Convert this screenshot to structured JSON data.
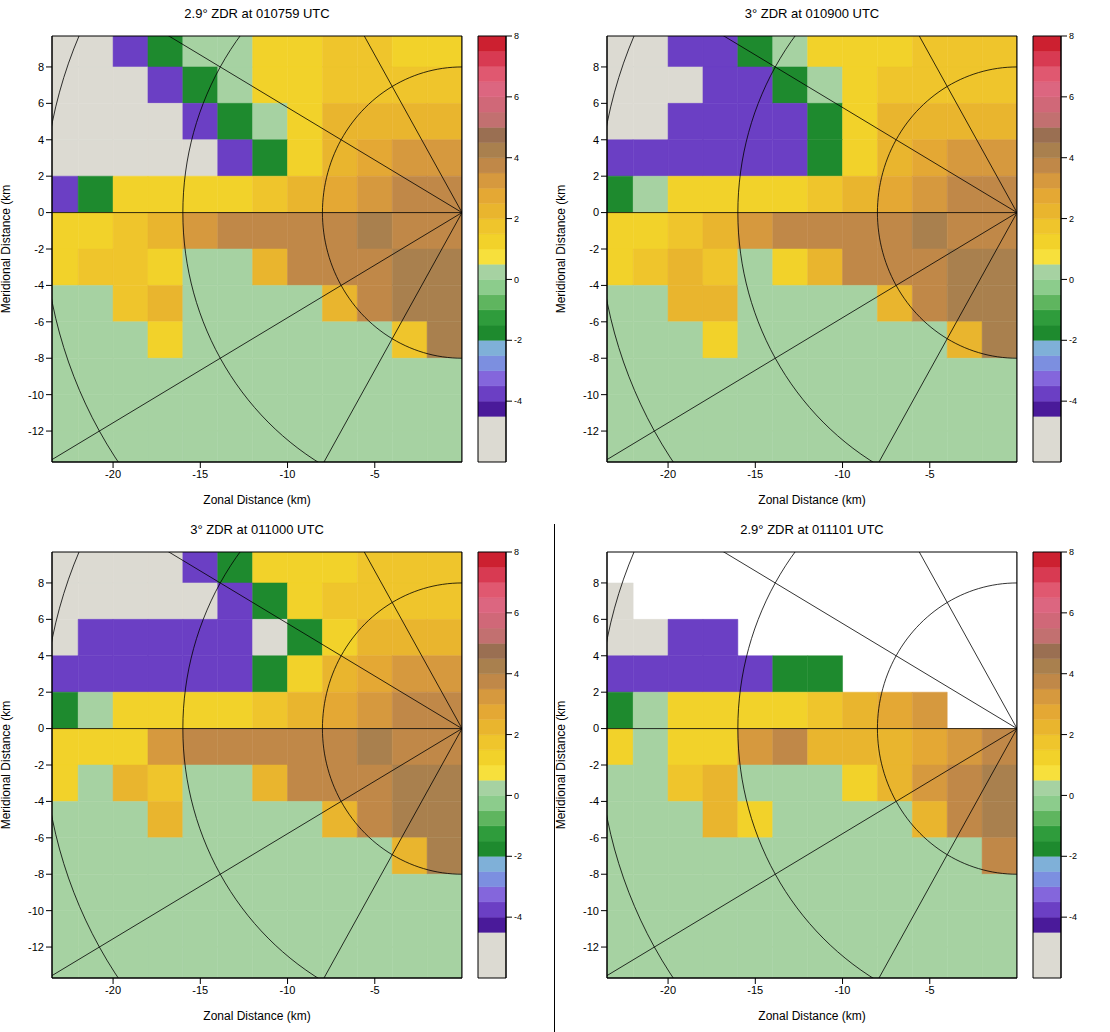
{
  "chart_data": [
    {
      "type": "heatmap",
      "title": "2.9° ZDR at 010759 UTC",
      "x_label": "Zonal Distance (km)",
      "y_label": "Meridional Distance (km",
      "xlim": [
        -23.5,
        0
      ],
      "ylim": [
        -13.7,
        9.7
      ],
      "xticks": [
        -20,
        -15,
        -10,
        -5
      ],
      "yticks": [
        -12,
        -10,
        -8,
        -6,
        -4,
        -2,
        0,
        2,
        4,
        6,
        8
      ],
      "x_edges": [
        -24,
        -22,
        -20,
        -18,
        -16,
        -14,
        -12,
        -10,
        -8,
        -6,
        -4,
        -2,
        0
      ],
      "y_edges": [
        10,
        8,
        6,
        4,
        2,
        0,
        -2,
        -4,
        -6,
        -8,
        -10,
        -12,
        -14
      ],
      "cells": [
        [
          -5,
          -5,
          -4,
          -1.8,
          0.2,
          0.2,
          1.2,
          1.2,
          1.5,
          1.5,
          1.2,
          1.2
        ],
        [
          -5,
          -5,
          -5,
          -4,
          -1.8,
          0.2,
          1.2,
          1.2,
          1.5,
          1.5,
          1.5,
          1.5
        ],
        [
          -5,
          -5,
          -5,
          -5,
          -4,
          -1.8,
          0.2,
          1.2,
          2.2,
          2.2,
          2.2,
          2.2
        ],
        [
          -5,
          -5,
          -5,
          -5,
          -5,
          -4,
          -1.8,
          1.2,
          2.2,
          2.5,
          3.0,
          3.0
        ],
        [
          -4,
          -1.8,
          1.2,
          1.2,
          1.2,
          1.2,
          1.5,
          2.2,
          2.5,
          3.0,
          3.5,
          3.8
        ],
        [
          1.2,
          1.2,
          1.5,
          2.2,
          3.0,
          3.5,
          3.8,
          3.8,
          3.8,
          4.0,
          3.8,
          3.8
        ],
        [
          1.2,
          1.5,
          1.5,
          1.2,
          0.2,
          0.2,
          2.2,
          3.8,
          3.8,
          3.8,
          4.3,
          4.0
        ],
        [
          0.2,
          0.2,
          1.5,
          2.2,
          0.2,
          0.2,
          0.2,
          0.2,
          2.2,
          3.8,
          4.0,
          4.3
        ],
        [
          0.2,
          0.2,
          0.2,
          1.2,
          0.2,
          0.2,
          0.2,
          0.2,
          0.2,
          0.2,
          1.5,
          4.3
        ],
        [
          0.2,
          0.2,
          0.2,
          0.2,
          0.2,
          0.2,
          0.2,
          0.2,
          0.2,
          0.2,
          0.2,
          0.2
        ],
        [
          0.2,
          0.2,
          0.2,
          0.2,
          0.2,
          0.2,
          0.2,
          0.2,
          0.2,
          0.2,
          0.2,
          0.2
        ],
        [
          0.2,
          0.2,
          0.2,
          0.2,
          0.2,
          0.2,
          0.2,
          0.2,
          0.2,
          0.2,
          0.2,
          0.2
        ]
      ],
      "range_rings": [
        8,
        16,
        24
      ],
      "azimuths": [
        90,
        120,
        150,
        180,
        210,
        240,
        270
      ],
      "colorbar": {
        "range": [
          -6,
          8
        ],
        "ticks": [
          -4,
          -2,
          0,
          2,
          4,
          6,
          8
        ],
        "bounds": [
          -6,
          -4.5,
          -4,
          -3.5,
          -3,
          -2.5,
          -2,
          -1.5,
          -1,
          -0.5,
          0,
          0.5,
          1,
          1.5,
          2,
          2.5,
          3,
          3.5,
          4,
          4.5,
          5,
          5.5,
          6,
          6.5,
          7,
          7.5,
          8
        ],
        "colors": [
          "#dcdad2",
          "#4a1a9a",
          "#6b3fc4",
          "#8466dc",
          "#7c8fe0",
          "#7fb0d8",
          "#1e8a2e",
          "#2f9c3c",
          "#5fb55f",
          "#8ccc8c",
          "#a6d2a2",
          "#f7e03c",
          "#f2d22a",
          "#efc52c",
          "#e9b52e",
          "#e4a834",
          "#d6993e",
          "#c08848",
          "#a9804e",
          "#9a6f52",
          "#c27070",
          "#d06878",
          "#dc6680",
          "#e05870",
          "#d83a52",
          "#cc2030"
        ]
      }
    },
    {
      "type": "heatmap",
      "title": "3° ZDR at 010900 UTC",
      "x_label": "Zonal Distance (km)",
      "y_label": "Meridional Distance (km",
      "xlim": [
        -23.5,
        0
      ],
      "ylim": [
        -13.7,
        9.7
      ],
      "xticks": [
        -20,
        -15,
        -10,
        -5
      ],
      "yticks": [
        -12,
        -10,
        -8,
        -6,
        -4,
        -2,
        0,
        2,
        4,
        6,
        8
      ],
      "x_edges": [
        -24,
        -22,
        -20,
        -18,
        -16,
        -14,
        -12,
        -10,
        -8,
        -6,
        -4,
        -2,
        0
      ],
      "y_edges": [
        10,
        8,
        6,
        4,
        2,
        0,
        -2,
        -4,
        -6,
        -8,
        -10,
        -12,
        -14
      ],
      "cells": [
        [
          -5,
          -5,
          -4,
          -4,
          -1.8,
          0.2,
          1.2,
          1.2,
          1.2,
          1.5,
          1.5,
          1.5
        ],
        [
          -5,
          -5,
          -5,
          -4,
          -4,
          -1.8,
          0.2,
          1.2,
          1.5,
          1.5,
          1.5,
          1.5
        ],
        [
          -5,
          -5,
          -4,
          -4,
          -4,
          -4,
          -1.8,
          1.2,
          2.2,
          2.2,
          2.2,
          2.2
        ],
        [
          -4,
          -4,
          -4,
          -4,
          -4,
          -4,
          -1.8,
          1.2,
          2.2,
          2.5,
          3.0,
          3.0
        ],
        [
          -1.8,
          0.2,
          1.2,
          1.2,
          1.2,
          1.2,
          1.5,
          2.2,
          2.5,
          3.0,
          3.5,
          3.8
        ],
        [
          1.2,
          1.2,
          1.5,
          2.2,
          3.0,
          3.5,
          3.8,
          3.8,
          3.8,
          4.0,
          3.8,
          3.8
        ],
        [
          1.2,
          1.5,
          2.2,
          1.5,
          0.2,
          1.2,
          2.2,
          3.8,
          3.8,
          3.8,
          4.3,
          4.0
        ],
        [
          0.2,
          0.2,
          2.2,
          2.2,
          0.2,
          0.2,
          0.2,
          0.2,
          2.2,
          3.8,
          4.0,
          4.3
        ],
        [
          0.2,
          0.2,
          0.2,
          1.2,
          0.2,
          0.2,
          0.2,
          0.2,
          0.2,
          0.2,
          2.2,
          4.3
        ],
        [
          0.2,
          0.2,
          0.2,
          0.2,
          0.2,
          0.2,
          0.2,
          0.2,
          0.2,
          0.2,
          0.2,
          0.2
        ],
        [
          0.2,
          0.2,
          0.2,
          0.2,
          0.2,
          0.2,
          0.2,
          0.2,
          0.2,
          0.2,
          0.2,
          0.2
        ],
        [
          0.2,
          0.2,
          0.2,
          0.2,
          0.2,
          0.2,
          0.2,
          0.2,
          0.2,
          0.2,
          0.2,
          0.2
        ]
      ],
      "range_rings": [
        8,
        16,
        24
      ],
      "azimuths": [
        90,
        120,
        150,
        180,
        210,
        240,
        270
      ],
      "colorbar": {
        "range": [
          -6,
          8
        ],
        "ticks": [
          -4,
          -2,
          0,
          2,
          4,
          6,
          8
        ],
        "bounds": [
          -6,
          -4.5,
          -4,
          -3.5,
          -3,
          -2.5,
          -2,
          -1.5,
          -1,
          -0.5,
          0,
          0.5,
          1,
          1.5,
          2,
          2.5,
          3,
          3.5,
          4,
          4.5,
          5,
          5.5,
          6,
          6.5,
          7,
          7.5,
          8
        ],
        "colors": [
          "#dcdad2",
          "#4a1a9a",
          "#6b3fc4",
          "#8466dc",
          "#7c8fe0",
          "#7fb0d8",
          "#1e8a2e",
          "#2f9c3c",
          "#5fb55f",
          "#8ccc8c",
          "#a6d2a2",
          "#f7e03c",
          "#f2d22a",
          "#efc52c",
          "#e9b52e",
          "#e4a834",
          "#d6993e",
          "#c08848",
          "#a9804e",
          "#9a6f52",
          "#c27070",
          "#d06878",
          "#dc6680",
          "#e05870",
          "#d83a52",
          "#cc2030"
        ]
      }
    },
    {
      "type": "heatmap",
      "title": "3° ZDR at 011000 UTC",
      "x_label": "Zonal Distance (km)",
      "y_label": "Meridional Distance (km",
      "xlim": [
        -23.5,
        0
      ],
      "ylim": [
        -13.7,
        9.7
      ],
      "xticks": [
        -20,
        -15,
        -10,
        -5
      ],
      "yticks": [
        -12,
        -10,
        -8,
        -6,
        -4,
        -2,
        0,
        2,
        4,
        6,
        8
      ],
      "x_edges": [
        -24,
        -22,
        -20,
        -18,
        -16,
        -14,
        -12,
        -10,
        -8,
        -6,
        -4,
        -2,
        0
      ],
      "y_edges": [
        10,
        8,
        6,
        4,
        2,
        0,
        -2,
        -4,
        -6,
        -8,
        -10,
        -12,
        -14
      ],
      "cells": [
        [
          -5,
          -5,
          -5,
          -5,
          -4,
          -1.8,
          1.2,
          1.2,
          1.2,
          1.5,
          1.5,
          1.5
        ],
        [
          -5,
          -5,
          -5,
          -5,
          -5,
          -4,
          -1.8,
          1.2,
          1.5,
          1.5,
          1.5,
          1.5
        ],
        [
          -5,
          -4,
          -4,
          -4,
          -4,
          -4,
          -5,
          -1.8,
          1.2,
          2.2,
          2.2,
          2.2
        ],
        [
          -4,
          -4,
          -4,
          -4,
          -4,
          -4,
          -1.8,
          1.2,
          2.2,
          2.5,
          3.0,
          3.0
        ],
        [
          -1.8,
          0.2,
          1.2,
          1.2,
          1.2,
          1.2,
          1.5,
          2.2,
          2.5,
          3.0,
          3.5,
          3.8
        ],
        [
          1.2,
          1.2,
          1.2,
          3.0,
          3.5,
          3.8,
          3.8,
          3.8,
          3.8,
          4.0,
          3.8,
          3.8
        ],
        [
          1.2,
          0.2,
          2.2,
          1.5,
          0.2,
          0.2,
          2.2,
          3.8,
          3.8,
          3.8,
          4.3,
          4.0
        ],
        [
          0.2,
          0.2,
          0.2,
          2.2,
          0.2,
          0.2,
          0.2,
          0.2,
          2.2,
          3.8,
          4.0,
          4.3
        ],
        [
          0.2,
          0.2,
          0.2,
          0.2,
          0.2,
          0.2,
          0.2,
          0.2,
          0.2,
          0.2,
          2.2,
          4.3
        ],
        [
          0.2,
          0.2,
          0.2,
          0.2,
          0.2,
          0.2,
          0.2,
          0.2,
          0.2,
          0.2,
          0.2,
          0.2
        ],
        [
          0.2,
          0.2,
          0.2,
          0.2,
          0.2,
          0.2,
          0.2,
          0.2,
          0.2,
          0.2,
          0.2,
          0.2
        ],
        [
          0.2,
          0.2,
          0.2,
          0.2,
          0.2,
          0.2,
          0.2,
          0.2,
          0.2,
          0.2,
          0.2,
          0.2
        ]
      ],
      "range_rings": [
        8,
        16,
        24
      ],
      "azimuths": [
        90,
        120,
        150,
        180,
        210,
        240,
        270
      ],
      "colorbar": {
        "range": [
          -6,
          8
        ],
        "ticks": [
          -4,
          -2,
          0,
          2,
          4,
          6,
          8
        ],
        "bounds": [
          -6,
          -4.5,
          -4,
          -3.5,
          -3,
          -2.5,
          -2,
          -1.5,
          -1,
          -0.5,
          0,
          0.5,
          1,
          1.5,
          2,
          2.5,
          3,
          3.5,
          4,
          4.5,
          5,
          5.5,
          6,
          6.5,
          7,
          7.5,
          8
        ],
        "colors": [
          "#dcdad2",
          "#4a1a9a",
          "#6b3fc4",
          "#8466dc",
          "#7c8fe0",
          "#7fb0d8",
          "#1e8a2e",
          "#2f9c3c",
          "#5fb55f",
          "#8ccc8c",
          "#a6d2a2",
          "#f7e03c",
          "#f2d22a",
          "#efc52c",
          "#e9b52e",
          "#e4a834",
          "#d6993e",
          "#c08848",
          "#a9804e",
          "#9a6f52",
          "#c27070",
          "#d06878",
          "#dc6680",
          "#e05870",
          "#d83a52",
          "#cc2030"
        ]
      }
    },
    {
      "type": "heatmap",
      "title": "2.9° ZDR at 011101 UTC",
      "x_label": "Zonal Distance (km)",
      "y_label": "Meridional Distance (km",
      "xlim": [
        -23.5,
        0
      ],
      "ylim": [
        -13.7,
        9.7
      ],
      "xticks": [
        -20,
        -15,
        -10,
        -5
      ],
      "yticks": [
        -12,
        -10,
        -8,
        -6,
        -4,
        -2,
        0,
        2,
        4,
        6,
        8
      ],
      "x_edges": [
        -24,
        -22,
        -20,
        -18,
        -16,
        -14,
        -12,
        -10,
        -8,
        -6,
        -4,
        -2,
        0
      ],
      "y_edges": [
        10,
        8,
        6,
        4,
        2,
        0,
        -2,
        -4,
        -6,
        -8,
        -10,
        -12,
        -14
      ],
      "cells": [
        [
          null,
          null,
          null,
          null,
          null,
          null,
          null,
          null,
          null,
          null,
          null,
          null
        ],
        [
          -5,
          null,
          null,
          null,
          null,
          null,
          null,
          null,
          null,
          null,
          null,
          null
        ],
        [
          -5,
          -5,
          -4,
          -4,
          null,
          null,
          null,
          null,
          null,
          null,
          null,
          null
        ],
        [
          -4,
          -4,
          -4,
          -4,
          -4,
          -1.8,
          -1.8,
          null,
          null,
          null,
          null,
          null
        ],
        [
          -1.8,
          0.2,
          1.2,
          1.2,
          1.2,
          1.2,
          1.5,
          2.2,
          2.5,
          3.0,
          null,
          null
        ],
        [
          1.2,
          0.2,
          1.2,
          1.2,
          3.0,
          3.5,
          2.2,
          2.2,
          2.2,
          2.5,
          3.0,
          3.8
        ],
        [
          0.2,
          0.2,
          1.5,
          2.2,
          0.2,
          0.2,
          0.2,
          1.2,
          2.2,
          3.0,
          3.8,
          4.0
        ],
        [
          0.2,
          0.2,
          0.2,
          2.2,
          1.2,
          0.2,
          0.2,
          0.2,
          0.2,
          2.2,
          3.8,
          4.3
        ],
        [
          0.2,
          0.2,
          0.2,
          0.2,
          0.2,
          0.2,
          0.2,
          0.2,
          0.2,
          0.2,
          0.2,
          3.8
        ],
        [
          0.2,
          0.2,
          0.2,
          0.2,
          0.2,
          0.2,
          0.2,
          0.2,
          0.2,
          0.2,
          0.2,
          0.2
        ],
        [
          0.2,
          0.2,
          0.2,
          0.2,
          0.2,
          0.2,
          0.2,
          0.2,
          0.2,
          0.2,
          0.2,
          0.2
        ],
        [
          0.2,
          0.2,
          0.2,
          0.2,
          0.2,
          0.2,
          0.2,
          0.2,
          0.2,
          0.2,
          0.2,
          0.2
        ]
      ],
      "range_rings": [
        8,
        16,
        24
      ],
      "azimuths": [
        90,
        120,
        150,
        180,
        210,
        240,
        270
      ],
      "colorbar": {
        "range": [
          -6,
          8
        ],
        "ticks": [
          -4,
          -2,
          0,
          2,
          4,
          6,
          8
        ],
        "bounds": [
          -6,
          -4.5,
          -4,
          -3.5,
          -3,
          -2.5,
          -2,
          -1.5,
          -1,
          -0.5,
          0,
          0.5,
          1,
          1.5,
          2,
          2.5,
          3,
          3.5,
          4,
          4.5,
          5,
          5.5,
          6,
          6.5,
          7,
          7.5,
          8
        ],
        "colors": [
          "#dcdad2",
          "#4a1a9a",
          "#6b3fc4",
          "#8466dc",
          "#7c8fe0",
          "#7fb0d8",
          "#1e8a2e",
          "#2f9c3c",
          "#5fb55f",
          "#8ccc8c",
          "#a6d2a2",
          "#f7e03c",
          "#f2d22a",
          "#efc52c",
          "#e9b52e",
          "#e4a834",
          "#d6993e",
          "#c08848",
          "#a9804e",
          "#9a6f52",
          "#c27070",
          "#d06878",
          "#dc6680",
          "#e05870",
          "#d83a52",
          "#cc2030"
        ]
      }
    }
  ]
}
